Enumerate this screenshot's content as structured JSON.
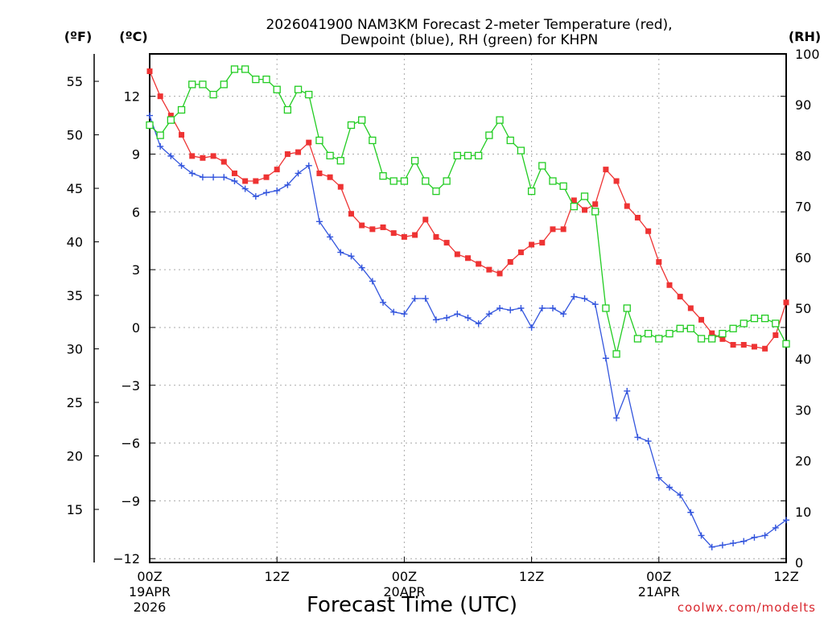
{
  "chart_data": {
    "type": "line",
    "title_line1": "2026041900 NAM3KM Forecast 2-meter Temperature (red),",
    "title_line2": "Dewpoint (blue), RH (green) for KHPN",
    "xlabel": "Forecast Time (UTC)",
    "credit": "coolwx.com/modelts",
    "unit_f": "(ºF)",
    "unit_c": "(ºC)",
    "unit_rh": "(RH)",
    "x_range_hours": [
      0,
      60
    ],
    "celsius_range": [
      -12.2,
      14.2
    ],
    "rh_range": [
      0,
      100
    ],
    "celsius_ticks": [
      "12",
      "9",
      "6",
      "3",
      "0",
      "−3",
      "−6",
      "−9",
      "−12"
    ],
    "fahrenheit_ticks": [
      "55",
      "50",
      "45",
      "40",
      "35",
      "30",
      "25",
      "20",
      "15"
    ],
    "rh_ticks": [
      "100",
      "90",
      "80",
      "70",
      "60",
      "50",
      "40",
      "30",
      "20",
      "10",
      "0"
    ],
    "x_ticks": [
      {
        "hour": 0,
        "line1": "00Z",
        "line2": "19APR",
        "line3": "2026"
      },
      {
        "hour": 12,
        "line1": "12Z",
        "line2": "",
        "line3": ""
      },
      {
        "hour": 24,
        "line1": "00Z",
        "line2": "20APR",
        "line3": ""
      },
      {
        "hour": 36,
        "line1": "12Z",
        "line2": "",
        "line3": ""
      },
      {
        "hour": 48,
        "line1": "00Z",
        "line2": "21APR",
        "line3": ""
      },
      {
        "hour": 60,
        "line1": "12Z",
        "line2": "",
        "line3": ""
      }
    ],
    "series": [
      {
        "name": "Temperature (°C)",
        "color": "#ee3333",
        "marker": "filled-square",
        "values": [
          13.3,
          12.0,
          11.0,
          10.0,
          8.9,
          8.8,
          8.9,
          8.6,
          8.0,
          7.6,
          7.6,
          7.8,
          8.2,
          9.0,
          9.1,
          9.6,
          8.0,
          7.8,
          7.3,
          5.9,
          5.3,
          5.1,
          5.2,
          4.9,
          4.7,
          4.8,
          5.6,
          4.7,
          4.4,
          3.8,
          3.6,
          3.3,
          3.0,
          2.8,
          3.4,
          3.9,
          4.3,
          4.4,
          5.1,
          5.1,
          6.6,
          6.1,
          6.4,
          8.2,
          7.6,
          6.3,
          5.7,
          5.0,
          3.4,
          2.2,
          1.6,
          1.0,
          0.4,
          -0.3,
          -0.6,
          -0.9,
          -0.9,
          -1.0,
          -1.1,
          -0.4,
          1.3
        ]
      },
      {
        "name": "Dewpoint (°C)",
        "color": "#3355dd",
        "marker": "plus",
        "values": [
          11.0,
          9.4,
          8.9,
          8.4,
          8.0,
          7.8,
          7.8,
          7.8,
          7.6,
          7.2,
          6.8,
          7.0,
          7.1,
          7.4,
          8.0,
          8.4,
          5.5,
          4.7,
          3.9,
          3.7,
          3.1,
          2.4,
          1.3,
          0.8,
          0.7,
          1.5,
          1.5,
          0.4,
          0.5,
          0.7,
          0.5,
          0.2,
          0.7,
          1.0,
          0.9,
          1.0,
          0.0,
          1.0,
          1.0,
          0.7,
          1.6,
          1.5,
          1.2,
          -1.6,
          -4.7,
          -3.3,
          -5.7,
          -5.9,
          -7.8,
          -8.3,
          -8.7,
          -9.6,
          -10.8,
          -11.4,
          -11.3,
          -11.2,
          -11.1,
          -10.9,
          -10.8,
          -10.4,
          -10.0
        ]
      },
      {
        "name": "RH (%)",
        "color": "#22cc22",
        "marker": "open-square",
        "values": [
          86,
          84,
          87,
          89,
          94,
          94,
          92,
          94,
          97,
          97,
          95,
          95,
          93,
          89,
          93,
          92,
          83,
          80,
          79,
          86,
          87,
          83,
          76,
          75,
          75,
          79,
          75,
          73,
          75,
          80,
          80,
          80,
          84,
          87,
          83,
          81,
          73,
          78,
          75,
          74,
          70,
          72,
          69,
          50,
          41,
          50,
          44,
          45,
          44,
          45,
          46,
          46,
          44,
          44,
          45,
          46,
          47,
          48,
          48,
          47,
          43
        ]
      }
    ]
  }
}
